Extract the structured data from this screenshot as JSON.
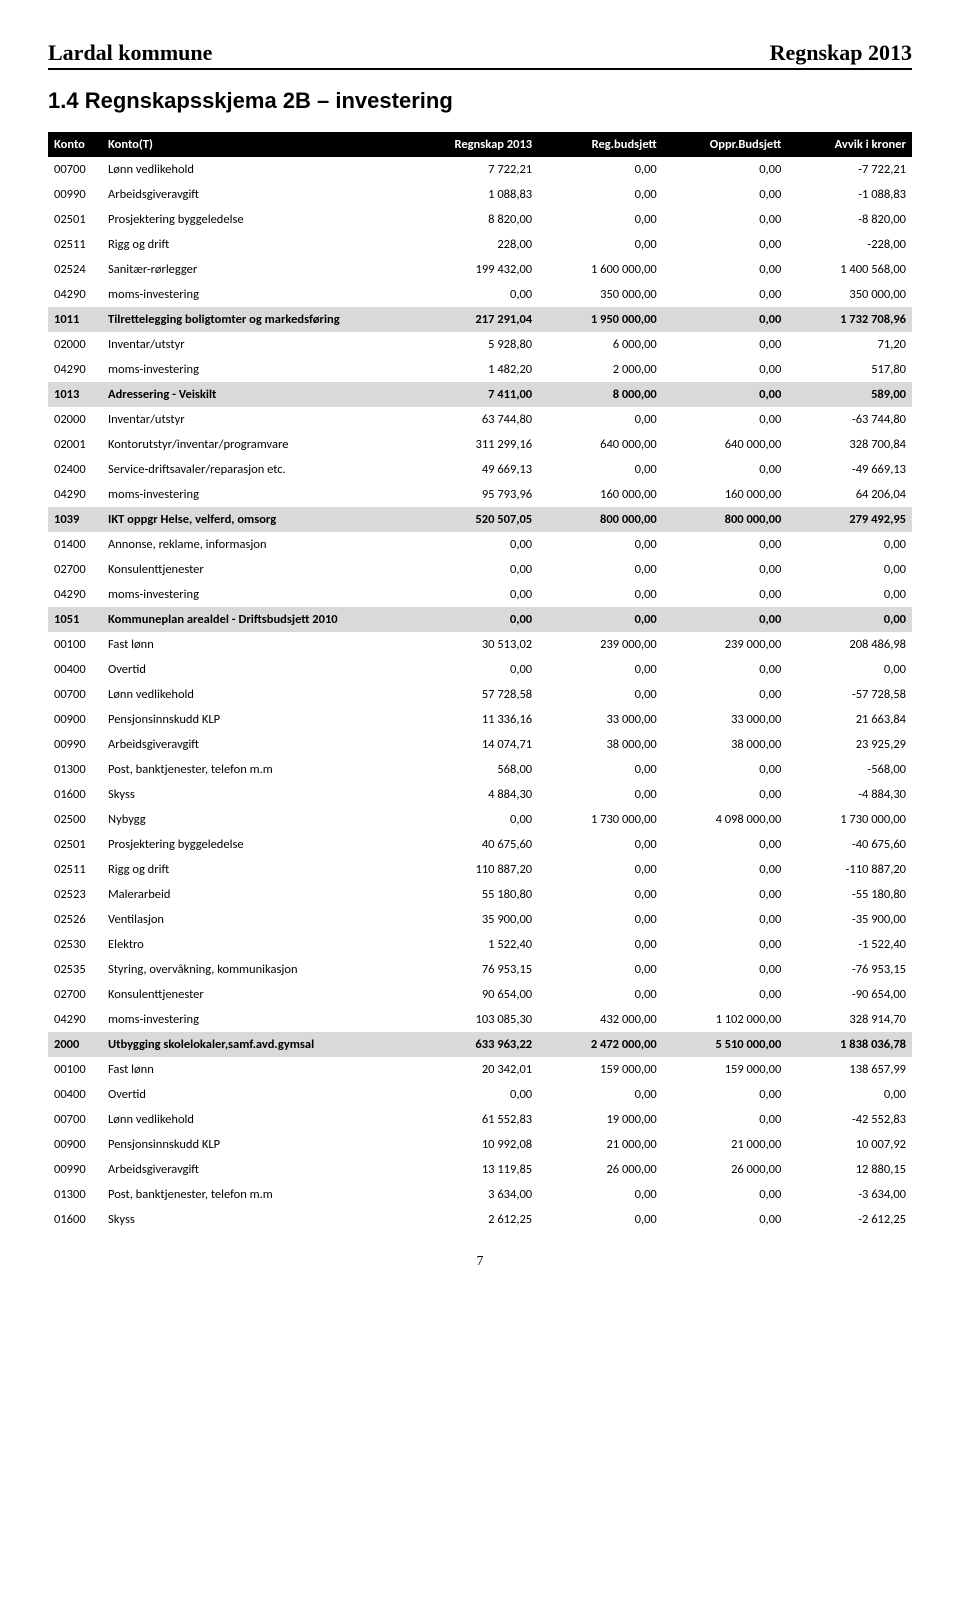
{
  "header": {
    "left": "Lardal kommune",
    "right": "Regnskap 2013"
  },
  "section_title": "1.4   Regnskapsskjema 2B – investering",
  "columns": [
    "Konto",
    "Konto(T)",
    "Regnskap 2013",
    "Reg.budsjett",
    "Oppr.Budsjett",
    "Avvik i kroner"
  ],
  "rows": [
    {
      "k": "00700",
      "t": "Lønn vedlikehold",
      "a": "7 722,21",
      "b": "0,00",
      "c": "0,00",
      "d": "-7 722,21"
    },
    {
      "k": "00990",
      "t": "Arbeidsgiveravgift",
      "a": "1 088,83",
      "b": "0,00",
      "c": "0,00",
      "d": "-1 088,83"
    },
    {
      "k": "02501",
      "t": "Prosjektering byggeledelse",
      "a": "8 820,00",
      "b": "0,00",
      "c": "0,00",
      "d": "-8 820,00"
    },
    {
      "k": "02511",
      "t": "Rigg og drift",
      "a": "228,00",
      "b": "0,00",
      "c": "0,00",
      "d": "-228,00"
    },
    {
      "k": "02524",
      "t": "Sanitær-rørlegger",
      "a": "199 432,00",
      "b": "1 600 000,00",
      "c": "0,00",
      "d": "1 400 568,00"
    },
    {
      "k": "04290",
      "t": "moms-investering",
      "a": "0,00",
      "b": "350 000,00",
      "c": "0,00",
      "d": "350 000,00"
    },
    {
      "k": "1011",
      "t": "Tilrettelegging boligtomter og markedsføring",
      "a": "217 291,04",
      "b": "1 950 000,00",
      "c": "0,00",
      "d": "1 732 708,96",
      "group": true
    },
    {
      "k": "02000",
      "t": "Inventar/utstyr",
      "a": "5 928,80",
      "b": "6 000,00",
      "c": "0,00",
      "d": "71,20"
    },
    {
      "k": "04290",
      "t": "moms-investering",
      "a": "1 482,20",
      "b": "2 000,00",
      "c": "0,00",
      "d": "517,80"
    },
    {
      "k": "1013",
      "t": "Adressering - Veiskilt",
      "a": "7 411,00",
      "b": "8 000,00",
      "c": "0,00",
      "d": "589,00",
      "group": true
    },
    {
      "k": "02000",
      "t": "Inventar/utstyr",
      "a": "63 744,80",
      "b": "0,00",
      "c": "0,00",
      "d": "-63 744,80"
    },
    {
      "k": "02001",
      "t": "Kontorutstyr/inventar/programvare",
      "a": "311 299,16",
      "b": "640 000,00",
      "c": "640 000,00",
      "d": "328 700,84"
    },
    {
      "k": "02400",
      "t": "Service-driftsavaler/reparasjon etc.",
      "a": "49 669,13",
      "b": "0,00",
      "c": "0,00",
      "d": "-49 669,13"
    },
    {
      "k": "04290",
      "t": "moms-investering",
      "a": "95 793,96",
      "b": "160 000,00",
      "c": "160 000,00",
      "d": "64 206,04"
    },
    {
      "k": "1039",
      "t": "IKT oppgr Helse, velferd, omsorg",
      "a": "520 507,05",
      "b": "800 000,00",
      "c": "800 000,00",
      "d": "279 492,95",
      "group": true
    },
    {
      "k": "01400",
      "t": "Annonse, reklame, informasjon",
      "a": "0,00",
      "b": "0,00",
      "c": "0,00",
      "d": "0,00"
    },
    {
      "k": "02700",
      "t": "Konsulenttjenester",
      "a": "0,00",
      "b": "0,00",
      "c": "0,00",
      "d": "0,00"
    },
    {
      "k": "04290",
      "t": "moms-investering",
      "a": "0,00",
      "b": "0,00",
      "c": "0,00",
      "d": "0,00"
    },
    {
      "k": "1051",
      "t": "Kommuneplan arealdel - Driftsbudsjett 2010",
      "a": "0,00",
      "b": "0,00",
      "c": "0,00",
      "d": "0,00",
      "group": true
    },
    {
      "k": "00100",
      "t": "Fast lønn",
      "a": "30 513,02",
      "b": "239 000,00",
      "c": "239 000,00",
      "d": "208 486,98"
    },
    {
      "k": "00400",
      "t": "Overtid",
      "a": "0,00",
      "b": "0,00",
      "c": "0,00",
      "d": "0,00"
    },
    {
      "k": "00700",
      "t": "Lønn vedlikehold",
      "a": "57 728,58",
      "b": "0,00",
      "c": "0,00",
      "d": "-57 728,58"
    },
    {
      "k": "00900",
      "t": "Pensjonsinnskudd KLP",
      "a": "11 336,16",
      "b": "33 000,00",
      "c": "33 000,00",
      "d": "21 663,84"
    },
    {
      "k": "00990",
      "t": "Arbeidsgiveravgift",
      "a": "14 074,71",
      "b": "38 000,00",
      "c": "38 000,00",
      "d": "23 925,29"
    },
    {
      "k": "01300",
      "t": "Post, banktjenester, telefon m.m",
      "a": "568,00",
      "b": "0,00",
      "c": "0,00",
      "d": "-568,00"
    },
    {
      "k": "01600",
      "t": "Skyss",
      "a": "4 884,30",
      "b": "0,00",
      "c": "0,00",
      "d": "-4 884,30"
    },
    {
      "k": "02500",
      "t": "Nybygg",
      "a": "0,00",
      "b": "1 730 000,00",
      "c": "4 098 000,00",
      "d": "1 730 000,00"
    },
    {
      "k": "02501",
      "t": "Prosjektering byggeledelse",
      "a": "40 675,60",
      "b": "0,00",
      "c": "0,00",
      "d": "-40 675,60"
    },
    {
      "k": "02511",
      "t": "Rigg og drift",
      "a": "110 887,20",
      "b": "0,00",
      "c": "0,00",
      "d": "-110 887,20"
    },
    {
      "k": "02523",
      "t": "Malerarbeid",
      "a": "55 180,80",
      "b": "0,00",
      "c": "0,00",
      "d": "-55 180,80"
    },
    {
      "k": "02526",
      "t": "Ventilasjon",
      "a": "35 900,00",
      "b": "0,00",
      "c": "0,00",
      "d": "-35 900,00"
    },
    {
      "k": "02530",
      "t": "Elektro",
      "a": "1 522,40",
      "b": "0,00",
      "c": "0,00",
      "d": "-1 522,40"
    },
    {
      "k": "02535",
      "t": "Styring, overvåkning, kommunikasjon",
      "a": "76 953,15",
      "b": "0,00",
      "c": "0,00",
      "d": "-76 953,15"
    },
    {
      "k": "02700",
      "t": "Konsulenttjenester",
      "a": "90 654,00",
      "b": "0,00",
      "c": "0,00",
      "d": "-90 654,00"
    },
    {
      "k": "04290",
      "t": "moms-investering",
      "a": "103 085,30",
      "b": "432 000,00",
      "c": "1 102 000,00",
      "d": "328 914,70"
    },
    {
      "k": "2000",
      "t": "Utbygging skolelokaler,samf.avd.gymsal",
      "a": "633 963,22",
      "b": "2 472 000,00",
      "c": "5 510 000,00",
      "d": "1 838 036,78",
      "group": true
    },
    {
      "k": "00100",
      "t": "Fast lønn",
      "a": "20 342,01",
      "b": "159 000,00",
      "c": "159 000,00",
      "d": "138 657,99"
    },
    {
      "k": "00400",
      "t": "Overtid",
      "a": "0,00",
      "b": "0,00",
      "c": "0,00",
      "d": "0,00"
    },
    {
      "k": "00700",
      "t": "Lønn vedlikehold",
      "a": "61 552,83",
      "b": "19 000,00",
      "c": "0,00",
      "d": "-42 552,83"
    },
    {
      "k": "00900",
      "t": "Pensjonsinnskudd KLP",
      "a": "10 992,08",
      "b": "21 000,00",
      "c": "21 000,00",
      "d": "10 007,92"
    },
    {
      "k": "00990",
      "t": "Arbeidsgiveravgift",
      "a": "13 119,85",
      "b": "26 000,00",
      "c": "26 000,00",
      "d": "12 880,15"
    },
    {
      "k": "01300",
      "t": "Post, banktjenester, telefon m.m",
      "a": "3 634,00",
      "b": "0,00",
      "c": "0,00",
      "d": "-3 634,00"
    },
    {
      "k": "01600",
      "t": "Skyss",
      "a": "2 612,25",
      "b": "0,00",
      "c": "0,00",
      "d": "-2 612,25"
    }
  ],
  "page_number": "7"
}
